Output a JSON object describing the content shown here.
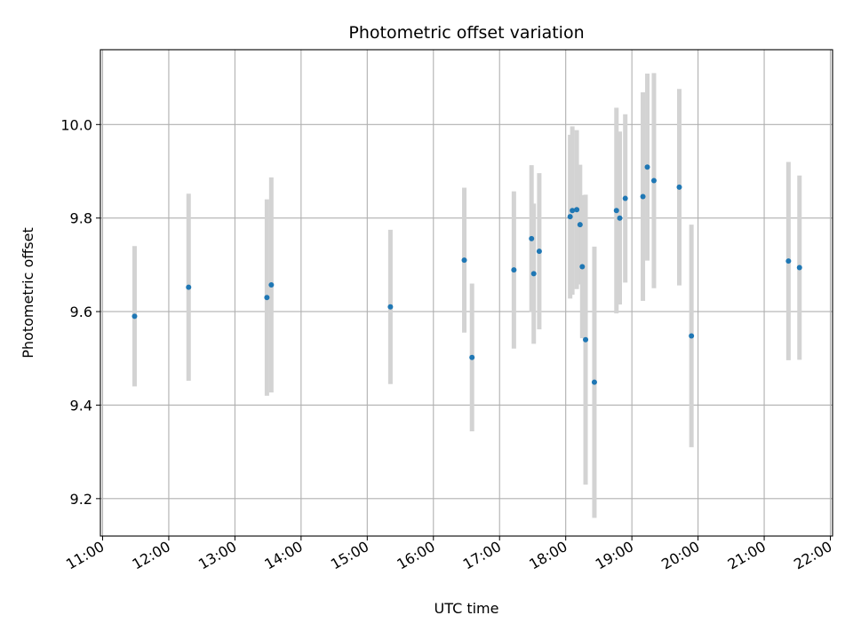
{
  "chart_data": {
    "type": "scatter",
    "title": "Photometric offset variation",
    "xlabel": "UTC time",
    "ylabel": "Photometric offset",
    "x_ticks": [
      "11:00",
      "12:00",
      "13:00",
      "14:00",
      "15:00",
      "16:00",
      "17:00",
      "18:00",
      "19:00",
      "20:00",
      "21:00",
      "22:00"
    ],
    "y_ticks": [
      "9.2",
      "9.4",
      "9.6",
      "9.8",
      "10.0"
    ],
    "xlim": [
      "10:58",
      "22:02"
    ],
    "ylim": [
      9.12,
      10.16
    ],
    "grid": true,
    "marker_color": "#1f77b4",
    "errorbar_color": "#d3d3d3",
    "points": [
      {
        "x": "11:29",
        "y": 9.59,
        "err": 0.15
      },
      {
        "x": "12:18",
        "y": 9.652,
        "err": 0.2
      },
      {
        "x": "13:29",
        "y": 9.63,
        "err": 0.21
      },
      {
        "x": "13:33",
        "y": 9.657,
        "err": 0.23
      },
      {
        "x": "15:21",
        "y": 9.61,
        "err": 0.165
      },
      {
        "x": "16:28",
        "y": 9.71,
        "err": 0.155
      },
      {
        "x": "16:35",
        "y": 9.502,
        "err": 0.158
      },
      {
        "x": "17:13",
        "y": 9.689,
        "err": 0.168
      },
      {
        "x": "17:29",
        "y": 9.756,
        "err": 0.157
      },
      {
        "x": "17:31",
        "y": 9.681,
        "err": 0.15
      },
      {
        "x": "17:36",
        "y": 9.729,
        "err": 0.167
      },
      {
        "x": "18:04",
        "y": 9.803,
        "err": 0.175
      },
      {
        "x": "18:06",
        "y": 9.816,
        "err": 0.18
      },
      {
        "x": "18:10",
        "y": 9.818,
        "err": 0.17
      },
      {
        "x": "18:13",
        "y": 9.786,
        "err": 0.128
      },
      {
        "x": "18:15",
        "y": 9.696,
        "err": 0.153
      },
      {
        "x": "18:18",
        "y": 9.54,
        "err": 0.31
      },
      {
        "x": "18:26",
        "y": 9.449,
        "err": 0.29
      },
      {
        "x": "18:46",
        "y": 9.816,
        "err": 0.22
      },
      {
        "x": "18:49",
        "y": 9.8,
        "err": 0.185
      },
      {
        "x": "18:54",
        "y": 9.842,
        "err": 0.18
      },
      {
        "x": "19:10",
        "y": 9.846,
        "err": 0.223
      },
      {
        "x": "19:14",
        "y": 9.909,
        "err": 0.2
      },
      {
        "x": "19:20",
        "y": 9.88,
        "err": 0.23
      },
      {
        "x": "19:43",
        "y": 9.866,
        "err": 0.21
      },
      {
        "x": "19:54",
        "y": 9.548,
        "err": 0.238
      },
      {
        "x": "21:22",
        "y": 9.708,
        "err": 0.212
      },
      {
        "x": "21:32",
        "y": 9.694,
        "err": 0.197
      }
    ]
  }
}
